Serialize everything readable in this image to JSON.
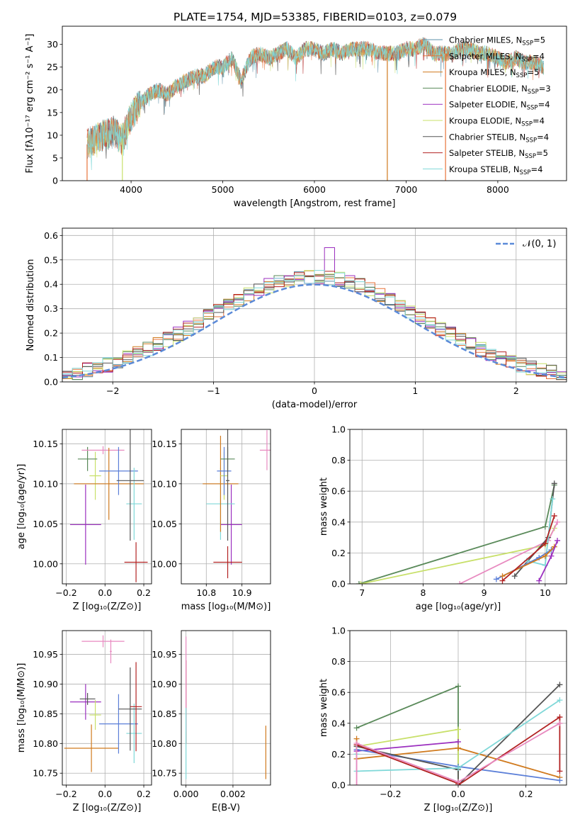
{
  "title": "PLATE=1754, MJD=53385, FIBERID=0103, z=0.079",
  "colors": {
    "chabrier_miles": "#5b8fa8",
    "salpeter_miles": "#e8733a",
    "kroupa_miles": "#d07a1e",
    "chabrier_elodie": "#5a8a5a",
    "salpeter_elodie": "#9b2fbf",
    "kroupa_elodie": "#c8e06a",
    "chabrier_stelib": "#555555",
    "salpeter_stelib": "#b22222",
    "kroupa_stelib": "#7fd8d8",
    "normal_curve": "#5b8ad8",
    "extra_pink": "#e88ac0",
    "extra_blue": "#5b7fd8"
  },
  "chart_data": [
    {
      "id": "spectrum",
      "type": "line",
      "xlabel": "wavelength [Angstrom, rest frame]",
      "ylabel": "Flux [fλ10⁻¹⁷ erg cm⁻² s⁻¹ A⁻¹]",
      "xlim": [
        3250,
        8750
      ],
      "ylim": [
        0,
        34
      ],
      "xticks": [
        "4000",
        "5000",
        "6000",
        "7000",
        "8000"
      ],
      "yticks": [
        "0",
        "5",
        "10",
        "15",
        "20",
        "25",
        "30"
      ],
      "legend_position": "top-right",
      "legend": [
        {
          "label": "Chabrier MILES, N",
          "sub": "SSP",
          "suffix": "=5",
          "color_key": "chabrier_miles"
        },
        {
          "label": "Salpeter MILES, N",
          "sub": "SSP",
          "suffix": "=4",
          "color_key": "salpeter_miles"
        },
        {
          "label": "Kroupa MILES, N",
          "sub": "SSP",
          "suffix": "=5",
          "color_key": "kroupa_miles"
        },
        {
          "label": "Chabrier ELODIE, N",
          "sub": "SSP",
          "suffix": "=3",
          "color_key": "chabrier_elodie"
        },
        {
          "label": "Salpeter ELODIE, N",
          "sub": "SSP",
          "suffix": "=4",
          "color_key": "salpeter_elodie"
        },
        {
          "label": "Kroupa ELODIE, N",
          "sub": "SSP",
          "suffix": "=4",
          "color_key": "kroupa_elodie"
        },
        {
          "label": "Chabrier STELIB, N",
          "sub": "SSP",
          "suffix": "=4",
          "color_key": "chabrier_stelib"
        },
        {
          "label": "Salpeter STELIB, N",
          "sub": "SSP",
          "suffix": "=5",
          "color_key": "salpeter_stelib"
        },
        {
          "label": "Kroupa STELIB, N",
          "sub": "SSP",
          "suffix": "=4",
          "color_key": "kroupa_stelib"
        }
      ],
      "spectrum_x": [
        3520,
        3600,
        3700,
        3800,
        3900,
        4000,
        4100,
        4200,
        4300,
        4400,
        4500,
        4600,
        4700,
        4800,
        4900,
        5000,
        5100,
        5200,
        5300,
        5400,
        5500,
        5600,
        5700,
        5800,
        5900,
        6000,
        6100,
        6200,
        6300,
        6400,
        6500,
        6600,
        6700,
        6800,
        6900,
        7000,
        7100,
        7200,
        7300,
        7400,
        7500,
        7600,
        7700,
        7800,
        7900,
        8000,
        8100,
        8200,
        8300,
        8400,
        8500
      ],
      "spectrum_y": [
        8,
        9,
        10,
        11,
        9,
        14,
        17,
        19,
        20,
        19,
        21,
        22,
        23,
        23,
        25,
        25,
        27,
        22,
        27,
        28,
        27,
        28,
        29,
        27,
        29,
        29,
        28,
        29,
        28,
        29,
        29,
        29,
        28,
        28,
        28,
        29,
        29,
        30,
        28,
        28,
        28,
        29,
        29,
        28,
        28,
        27,
        26,
        27,
        26,
        26,
        25
      ],
      "dropouts": [
        {
          "x": 3520,
          "color_key": "salpeter_miles"
        },
        {
          "x": 3905,
          "color_key": "kroupa_elodie"
        },
        {
          "x": 6795,
          "color_key": "kroupa_miles"
        },
        {
          "x": 7430,
          "color_key": "salpeter_miles"
        }
      ]
    },
    {
      "id": "residuals",
      "type": "histogram",
      "xlabel": "(data-model)/error",
      "ylabel": "Normed distribution",
      "xlim": [
        -2.5,
        2.5
      ],
      "ylim": [
        0,
        0.63
      ],
      "xticks": [
        "−2",
        "−1",
        "0",
        "1",
        "2"
      ],
      "yticks": [
        "0.0",
        "0.1",
        "0.2",
        "0.3",
        "0.4",
        "0.5",
        "0.6"
      ],
      "grid": true,
      "legend_position": "top-right",
      "legend_label": "𝒩(0, 1)",
      "bin_width": 0.1,
      "bin_start": -2.5
    },
    {
      "id": "age_vs_z",
      "type": "scatter",
      "xlabel": "Z [log₁₀(Z/Z⊙)]",
      "ylabel": "age  [log₁₀(age/yr)]",
      "xlim": [
        -0.22,
        0.24
      ],
      "ylim": [
        9.975,
        10.168
      ],
      "xticks": [
        "−0.2",
        "0.0",
        "0.2"
      ],
      "yticks": [
        "10.00",
        "10.05",
        "10.10",
        "10.15"
      ],
      "grid": true,
      "points": [
        {
          "x": -0.1,
          "y": 10.049,
          "ex": 0.08,
          "ey": 0.05,
          "color_key": "salpeter_elodie"
        },
        {
          "x": -0.05,
          "y": 10.11,
          "ex": 0.03,
          "ey": 0.03,
          "color_key": "kroupa_elodie"
        },
        {
          "x": -0.09,
          "y": 10.131,
          "ex": 0.05,
          "ey": 0.015,
          "color_key": "chabrier_elodie"
        },
        {
          "x": -0.01,
          "y": 10.142,
          "ex": 0.11,
          "ey": 0.005,
          "color_key": "extra_pink"
        },
        {
          "x": 0.02,
          "y": 10.1,
          "ex": 0.18,
          "ey": 0.045,
          "color_key": "kroupa_miles"
        },
        {
          "x": 0.07,
          "y": 10.116,
          "ex": 0.1,
          "ey": 0.03,
          "color_key": "extra_blue"
        },
        {
          "x": 0.15,
          "y": 10.075,
          "ex": 0.04,
          "ey": 0.045,
          "color_key": "kroupa_stelib"
        },
        {
          "x": 0.13,
          "y": 10.104,
          "ex": 0.07,
          "ey": 0.075,
          "color_key": "chabrier_stelib"
        },
        {
          "x": 0.16,
          "y": 10.002,
          "ex": 0.06,
          "ey": 0.025,
          "color_key": "salpeter_stelib"
        }
      ]
    },
    {
      "id": "age_vs_mass",
      "type": "scatter",
      "xlabel": "mass [log₁₀(M/M⊙)]",
      "xlim": [
        10.73,
        10.98
      ],
      "ylim": [
        9.975,
        10.168
      ],
      "xticks": [
        "10.8",
        "10.9"
      ],
      "yticks": [
        "10.00",
        "10.05",
        "10.10",
        "10.15"
      ],
      "grid": true,
      "points": [
        {
          "x": 10.87,
          "y": 10.049,
          "ex": 0.03,
          "ey": 0.05,
          "color_key": "salpeter_elodie"
        },
        {
          "x": 10.84,
          "y": 10.075,
          "ex": 0.04,
          "ey": 0.045,
          "color_key": "kroupa_stelib"
        },
        {
          "x": 10.84,
          "y": 10.1,
          "ex": 0.05,
          "ey": 0.06,
          "color_key": "kroupa_miles"
        },
        {
          "x": 10.85,
          "y": 10.11,
          "ex": 0.01,
          "ey": 0.03,
          "color_key": "kroupa_elodie"
        },
        {
          "x": 10.85,
          "y": 10.116,
          "ex": 0.02,
          "ey": 0.03,
          "color_key": "extra_blue"
        },
        {
          "x": 10.86,
          "y": 10.131,
          "ex": 0.02,
          "ey": 0.015,
          "color_key": "chabrier_elodie"
        },
        {
          "x": 10.86,
          "y": 10.104,
          "ex": 0.005,
          "ey": 0.075,
          "color_key": "chabrier_stelib"
        },
        {
          "x": 10.86,
          "y": 10.002,
          "ex": 0.04,
          "ey": 0.02,
          "color_key": "salpeter_stelib"
        },
        {
          "x": 10.97,
          "y": 10.142,
          "ex": 0.02,
          "ey": 0.025,
          "color_key": "extra_pink"
        }
      ]
    },
    {
      "id": "weight_vs_age",
      "type": "line",
      "xlabel": "age  [log₁₀(age/yr)]",
      "ylabel": "mass weight",
      "xlim": [
        6.8,
        10.35
      ],
      "ylim": [
        0,
        1.0
      ],
      "xticks": [
        "7",
        "8",
        "9",
        "10"
      ],
      "yticks": [
        "0.0",
        "0.2",
        "0.4",
        "0.6",
        "0.8",
        "1.0"
      ],
      "grid": true,
      "series": [
        {
          "color_key": "chabrier_elodie",
          "x": [
            6.95,
            10.0,
            10.15
          ],
          "y": [
            0.0,
            0.37,
            0.64
          ]
        },
        {
          "color_key": "kroupa_elodie",
          "x": [
            6.98,
            10.0,
            10.15
          ],
          "y": [
            0.0,
            0.25,
            0.36
          ]
        },
        {
          "color_key": "extra_pink",
          "x": [
            8.6,
            10.05,
            10.2
          ],
          "y": [
            0.0,
            0.28,
            0.4
          ]
        },
        {
          "color_key": "chabrier_stelib",
          "x": [
            9.5,
            10.05,
            10.15
          ],
          "y": [
            0.05,
            0.3,
            0.65
          ]
        },
        {
          "color_key": "kroupa_stelib",
          "x": [
            9.7,
            10.0,
            10.12
          ],
          "y": [
            0.15,
            0.12,
            0.55
          ]
        },
        {
          "color_key": "extra_blue",
          "x": [
            9.2,
            9.9,
            10.1
          ],
          "y": [
            0.03,
            0.17,
            0.22
          ]
        },
        {
          "color_key": "kroupa_miles",
          "x": [
            9.3,
            10.0,
            10.15
          ],
          "y": [
            0.05,
            0.18,
            0.24
          ]
        },
        {
          "color_key": "salpeter_stelib",
          "x": [
            9.3,
            10.0,
            10.15
          ],
          "y": [
            0.02,
            0.26,
            0.44
          ]
        },
        {
          "color_key": "salpeter_elodie",
          "x": [
            9.9,
            10.1,
            10.2
          ],
          "y": [
            0.02,
            0.18,
            0.28
          ]
        }
      ]
    },
    {
      "id": "mass_vs_z",
      "type": "scatter",
      "xlabel": "Z [log₁₀(Z/Z⊙)]",
      "ylabel": "mass [log₁₀(M/M⊙)]",
      "xlim": [
        -0.22,
        0.24
      ],
      "ylim": [
        10.73,
        10.99
      ],
      "xticks": [
        "−0.2",
        "0.0",
        "0.2"
      ],
      "yticks": [
        "10.75",
        "10.80",
        "10.85",
        "10.90",
        "10.95"
      ],
      "grid": true,
      "points": [
        {
          "x": -0.1,
          "y": 10.87,
          "ex": 0.08,
          "ey": 0.03,
          "color_key": "salpeter_elodie"
        },
        {
          "x": -0.09,
          "y": 10.875,
          "ex": 0.04,
          "ey": 0.01,
          "color_key": "chabrier_stelib"
        },
        {
          "x": -0.05,
          "y": 10.848,
          "ex": 0.03,
          "ey": 0.025,
          "color_key": "kroupa_elodie"
        },
        {
          "x": -0.01,
          "y": 10.972,
          "ex": 0.11,
          "ey": 0.01,
          "color_key": "extra_pink"
        },
        {
          "x": 0.03,
          "y": 10.955,
          "ex": 0.005,
          "ey": 0.02,
          "color_key": "extra_pink"
        },
        {
          "x": -0.07,
          "y": 10.792,
          "ex": 0.14,
          "ey": 0.04,
          "color_key": "kroupa_miles"
        },
        {
          "x": 0.07,
          "y": 10.833,
          "ex": 0.1,
          "ey": 0.05,
          "color_key": "extra_blue"
        },
        {
          "x": 0.15,
          "y": 10.817,
          "ex": 0.04,
          "ey": 0.05,
          "color_key": "kroupa_stelib"
        },
        {
          "x": 0.13,
          "y": 10.858,
          "ex": 0.06,
          "ey": 0.07,
          "color_key": "chabrier_stelib"
        },
        {
          "x": 0.16,
          "y": 10.862,
          "ex": 0.03,
          "ey": 0.075,
          "color_key": "salpeter_stelib"
        }
      ]
    },
    {
      "id": "mass_vs_ebv",
      "type": "scatter",
      "xlabel": "E(B-V)",
      "xlim": [
        -0.0002,
        0.0036
      ],
      "ylim": [
        10.73,
        10.99
      ],
      "xticks": [
        "0.000",
        "0.002"
      ],
      "yticks": [
        "10.75",
        "10.80",
        "10.85",
        "10.90",
        "10.95"
      ],
      "grid": true,
      "points": [
        {
          "x": 0.0,
          "y": 10.87,
          "ex": 0.0,
          "ey": 0.07,
          "color_key": "salpeter_stelib"
        },
        {
          "x": 0.0,
          "y": 10.9,
          "ex": 0.0,
          "ey": 0.08,
          "color_key": "extra_pink"
        },
        {
          "x": 0.0,
          "y": 10.8,
          "ex": 0.0,
          "ey": 0.06,
          "color_key": "kroupa_stelib"
        },
        {
          "x": 0.0034,
          "y": 10.785,
          "ex": 0.0,
          "ey": 0.045,
          "color_key": "kroupa_miles"
        }
      ]
    },
    {
      "id": "weight_vs_z",
      "type": "line",
      "xlabel": "Z [log₁₀(Z/Z⊙)]",
      "ylabel": "mass weight",
      "xlim": [
        -0.32,
        0.32
      ],
      "ylim": [
        0,
        1.0
      ],
      "xticks": [
        "−0.2",
        "0.0",
        "0.2"
      ],
      "yticks": [
        "0.0",
        "0.2",
        "0.4",
        "0.6",
        "0.8",
        "1.0"
      ],
      "grid": true,
      "series": [
        {
          "color_key": "chabrier_elodie",
          "x": [
            -0.3,
            0.0,
            0.0
          ],
          "y": [
            0.37,
            0.64,
            0.0
          ]
        },
        {
          "color_key": "kroupa_elodie",
          "x": [
            -0.3,
            0.0,
            0.0
          ],
          "y": [
            0.25,
            0.36,
            0.0
          ]
        },
        {
          "color_key": "salpeter_elodie",
          "x": [
            -0.3,
            0.0
          ],
          "y": [
            0.22,
            0.28
          ]
        },
        {
          "color_key": "kroupa_miles",
          "x": [
            -0.3,
            -0.3,
            0.0,
            0.3
          ],
          "y": [
            0.3,
            0.17,
            0.24,
            0.05
          ]
        },
        {
          "color_key": "extra_blue",
          "x": [
            -0.3,
            0.0,
            0.3
          ],
          "y": [
            0.23,
            0.12,
            0.03
          ]
        },
        {
          "color_key": "chabrier_stelib",
          "x": [
            -0.3,
            0.0,
            0.0,
            0.3
          ],
          "y": [
            0.25,
            0.1,
            0.0,
            0.65
          ]
        },
        {
          "color_key": "kroupa_stelib",
          "x": [
            -0.3,
            -0.3,
            0.0,
            0.3
          ],
          "y": [
            0.2,
            0.09,
            0.11,
            0.55
          ]
        },
        {
          "color_key": "salpeter_stelib",
          "x": [
            -0.3,
            0.0,
            0.0,
            0.3,
            0.3
          ],
          "y": [
            0.26,
            0.01,
            0.0,
            0.44,
            0.09
          ]
        },
        {
          "color_key": "extra_pink",
          "x": [
            -0.3,
            -0.3,
            0.0,
            0.3
          ],
          "y": [
            0.0,
            0.27,
            0.02,
            0.4
          ]
        }
      ]
    }
  ]
}
